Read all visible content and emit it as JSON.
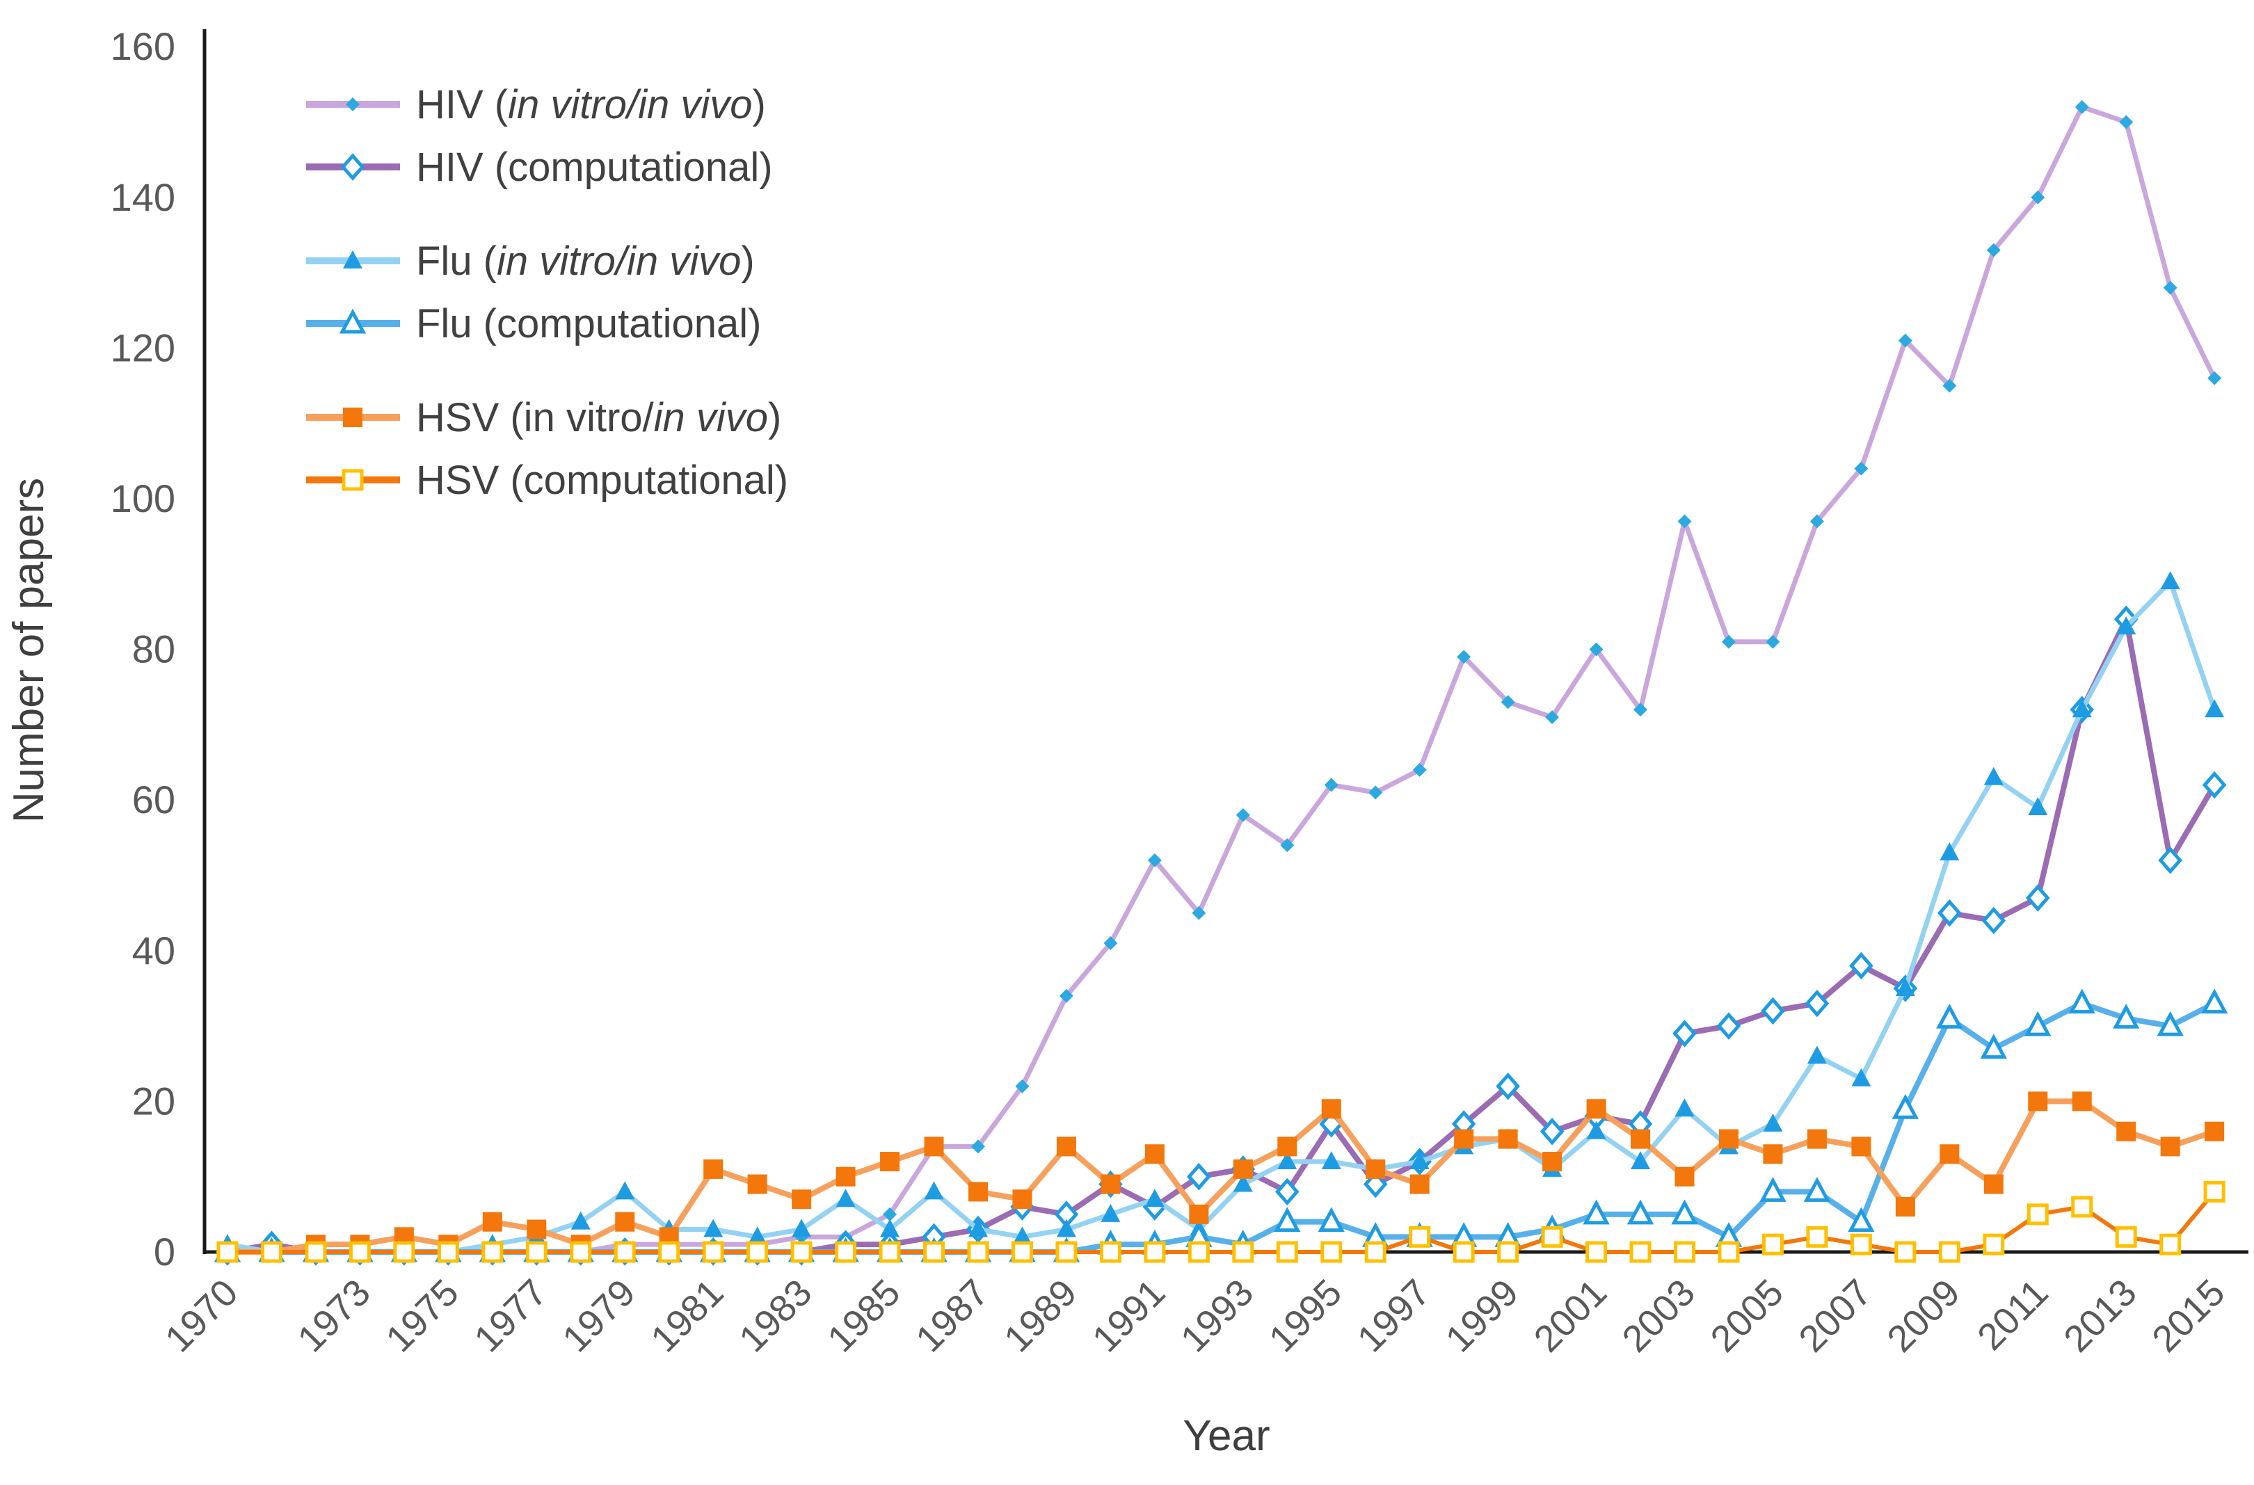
{
  "chart_data": {
    "type": "line",
    "title": "",
    "xlabel": "Year",
    "ylabel": "Number of papers",
    "ylim": [
      0,
      160
    ],
    "ytick_step": 20,
    "grid": false,
    "legend_position": "top-left-inside",
    "x": [
      1970,
      1971,
      1972,
      1973,
      1974,
      1975,
      1976,
      1977,
      1978,
      1979,
      1980,
      1981,
      1982,
      1983,
      1984,
      1985,
      1986,
      1987,
      1988,
      1989,
      1990,
      1991,
      1992,
      1993,
      1994,
      1995,
      1996,
      1997,
      1998,
      1999,
      2000,
      2001,
      2002,
      2003,
      2004,
      2005,
      2006,
      2007,
      2008,
      2009,
      2010,
      2011,
      2012,
      2013,
      2014,
      2015
    ],
    "x_axis_labels": [
      "1970",
      "1973",
      "1975",
      "1977",
      "1979",
      "1981",
      "1983",
      "1985",
      "1987",
      "1989",
      "1991",
      "1993",
      "1995",
      "1997",
      "1999",
      "2001",
      "2003",
      "2005",
      "2007",
      "2009",
      "2011",
      "2013",
      "2015"
    ],
    "colors": {
      "hiv_vitro_line": "#c9a7dc",
      "hiv_vitro_marker": "#2da9e1",
      "hiv_comp_line": "#9b6bb3",
      "hiv_comp_marker": "#1e9ce3",
      "flu_vitro_line": "#93d2f2",
      "flu_vitro_marker": "#1e9ce3",
      "flu_comp_line": "#58b0ea",
      "flu_comp_marker": "#1e9ce3",
      "hsv_vitro_line": "#f6a05c",
      "hsv_vitro_marker": "#f3770b",
      "hsv_comp_line": "#f3770b",
      "hsv_comp_marker": "#ffc000"
    },
    "series": [
      {
        "id": "hiv_vitro",
        "name": "HIV (in vitro/in vivo)",
        "name_parts": [
          {
            "text": "HIV (",
            "italic": false
          },
          {
            "text": "in vitro/in vivo",
            "italic": true
          },
          {
            "text": ")",
            "italic": false
          }
        ],
        "marker": "dot",
        "line_color_key": "hiv_vitro_line",
        "marker_color_key": "hiv_vitro_marker",
        "line_width": 7,
        "values": [
          0,
          0,
          0,
          0,
          0,
          0,
          0,
          0,
          0,
          1,
          1,
          1,
          1,
          2,
          2,
          5,
          14,
          14,
          22,
          34,
          41,
          52,
          45,
          58,
          54,
          62,
          61,
          64,
          79,
          73,
          71,
          80,
          72,
          97,
          81,
          81,
          97,
          104,
          121,
          115,
          133,
          140,
          152,
          150,
          128,
          116
        ]
      },
      {
        "id": "hiv_comp",
        "name": "HIV (computational)",
        "name_parts": [
          {
            "text": "HIV (computational)",
            "italic": false
          }
        ],
        "marker": "diamond-open",
        "line_color_key": "hiv_comp_line",
        "marker_color_key": "hiv_comp_marker",
        "line_width": 8,
        "values": [
          0,
          1,
          0,
          0,
          0,
          0,
          0,
          0,
          0,
          0,
          0,
          0,
          0,
          0,
          1,
          1,
          2,
          3,
          6,
          5,
          9,
          6,
          10,
          11,
          8,
          17,
          9,
          12,
          17,
          22,
          16,
          18,
          17,
          29,
          30,
          32,
          33,
          38,
          35,
          45,
          44,
          47,
          72,
          84,
          52,
          62
        ]
      },
      {
        "id": "flu_vitro",
        "name": "Flu (in vitro/in vivo)",
        "name_parts": [
          {
            "text": "Flu (",
            "italic": false
          },
          {
            "text": "in vitro/in vivo",
            "italic": true
          },
          {
            "text": ")",
            "italic": false
          }
        ],
        "marker": "triangle",
        "line_color_key": "flu_vitro_line",
        "marker_color_key": "flu_vitro_marker",
        "line_width": 7,
        "values": [
          1,
          0,
          0,
          0,
          0,
          0,
          1,
          2,
          4,
          8,
          3,
          3,
          2,
          3,
          7,
          3,
          8,
          3,
          2,
          3,
          5,
          7,
          3,
          9,
          12,
          12,
          11,
          12,
          14,
          15,
          11,
          16,
          12,
          19,
          14,
          17,
          26,
          23,
          35,
          53,
          63,
          59,
          72,
          83,
          89,
          72
        ]
      },
      {
        "id": "flu_comp",
        "name": "Flu (computational)",
        "name_parts": [
          {
            "text": "Flu (computational)",
            "italic": false
          }
        ],
        "marker": "triangle-open",
        "line_color_key": "flu_comp_line",
        "marker_color_key": "flu_comp_marker",
        "line_width": 8,
        "values": [
          0,
          0,
          0,
          0,
          0,
          0,
          0,
          0,
          0,
          0,
          0,
          0,
          0,
          0,
          0,
          0,
          0,
          0,
          0,
          0,
          1,
          1,
          2,
          1,
          4,
          4,
          2,
          2,
          2,
          2,
          3,
          5,
          5,
          5,
          2,
          8,
          8,
          4,
          19,
          31,
          27,
          30,
          33,
          31,
          30,
          33
        ]
      },
      {
        "id": "hsv_vitro",
        "name": "HSV (in vitro/in vivo)",
        "name_parts": [
          {
            "text": "HSV (in vitro/",
            "italic": false
          },
          {
            "text": "in vivo",
            "italic": true
          },
          {
            "text": ")",
            "italic": false
          }
        ],
        "marker": "square",
        "line_color_key": "hsv_vitro_line",
        "marker_color_key": "hsv_vitro_marker",
        "line_width": 8,
        "values": [
          0,
          0,
          1,
          1,
          2,
          1,
          4,
          3,
          1,
          4,
          2,
          11,
          9,
          7,
          10,
          12,
          14,
          8,
          7,
          14,
          9,
          13,
          5,
          11,
          14,
          19,
          11,
          9,
          15,
          15,
          12,
          19,
          15,
          10,
          15,
          13,
          15,
          14,
          6,
          13,
          9,
          20,
          20,
          16,
          14,
          16
        ]
      },
      {
        "id": "hsv_comp",
        "name": "HSV (computational)",
        "name_parts": [
          {
            "text": "HSV (computational)",
            "italic": false
          }
        ],
        "marker": "square-open",
        "line_color_key": "hsv_comp_line",
        "marker_color_key": "hsv_comp_marker",
        "line_width": 6,
        "values": [
          0,
          0,
          0,
          0,
          0,
          0,
          0,
          0,
          0,
          0,
          0,
          0,
          0,
          0,
          0,
          0,
          0,
          0,
          0,
          0,
          0,
          0,
          0,
          0,
          0,
          0,
          0,
          2,
          0,
          0,
          2,
          0,
          0,
          0,
          0,
          1,
          2,
          1,
          0,
          0,
          1,
          5,
          6,
          2,
          1,
          8
        ]
      }
    ],
    "axis": {
      "y_ticks": [
        0,
        20,
        40,
        60,
        80,
        100,
        120,
        140,
        160
      ],
      "tick_color": "#595959",
      "axis_color": "#1a1a1a",
      "title_color": "#3f3f3f"
    }
  }
}
